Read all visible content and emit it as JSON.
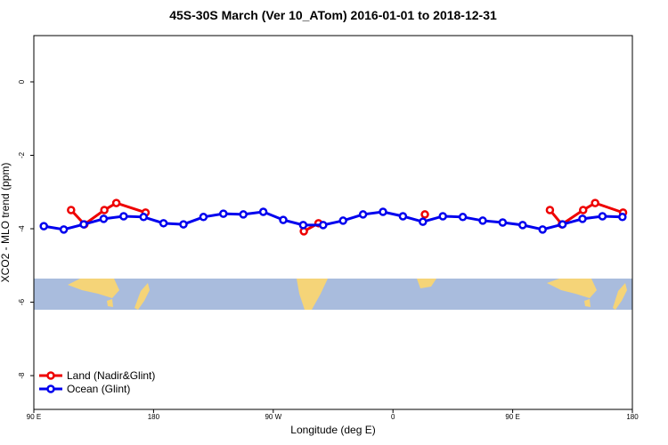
{
  "chart_data": {
    "type": "line",
    "title": "45S-30S March (Ver 10_ATom)   2016-01-01 to 2018-12-31",
    "xlabel": "Longitude (deg E)",
    "ylabel": "XCO2 - MLO trend (ppm)",
    "xlim": [
      90,
      540
    ],
    "ylim": [
      -8.92,
      1.26
    ],
    "xticks": [
      {
        "value": 90,
        "label": "90 E"
      },
      180,
      {
        "value": 270,
        "label": "90 W"
      },
      {
        "value": 360,
        "label": "0"
      },
      {
        "value": 450,
        "label": "90 E"
      },
      {
        "value": 540,
        "label": "180"
      }
    ],
    "yticks": [
      0,
      -2,
      -4,
      -6,
      -8
    ],
    "legend": "bottom-left",
    "series": [
      {
        "name": "Land (Nadir&Glint)",
        "color": "#ee0000",
        "x": [
          118,
          128,
          143,
          152,
          174,
          293,
          304,
          384,
          478,
          487,
          503,
          512,
          533
        ],
        "values": [
          -3.49,
          -3.88,
          -3.49,
          -3.3,
          -3.56,
          -4.07,
          -3.85,
          -3.61,
          -3.49,
          -3.88,
          -3.49,
          -3.3,
          -3.56
        ]
      },
      {
        "name": "Ocean (Glint)",
        "color": "#0000ee",
        "x": [
          97.5,
          112.5,
          127.5,
          142.5,
          157.5,
          172.5,
          187.5,
          202.5,
          217.5,
          232.5,
          247.5,
          262.5,
          277.5,
          292.5,
          307.5,
          322.5,
          337.5,
          352.5,
          367.5,
          382.5,
          397.5,
          412.5,
          427.5,
          442.5,
          457.5,
          472.5,
          487.5,
          502.5,
          517.5,
          532.5
        ],
        "values": [
          -3.93,
          -4.02,
          -3.88,
          -3.73,
          -3.66,
          -3.68,
          -3.85,
          -3.88,
          -3.68,
          -3.59,
          -3.61,
          -3.54,
          -3.76,
          -3.9,
          -3.9,
          -3.78,
          -3.61,
          -3.54,
          -3.66,
          -3.81,
          -3.66,
          -3.68,
          -3.78,
          -3.83,
          -3.9,
          -4.02,
          -3.88,
          -3.73,
          -3.66,
          -3.68
        ]
      }
    ]
  }
}
